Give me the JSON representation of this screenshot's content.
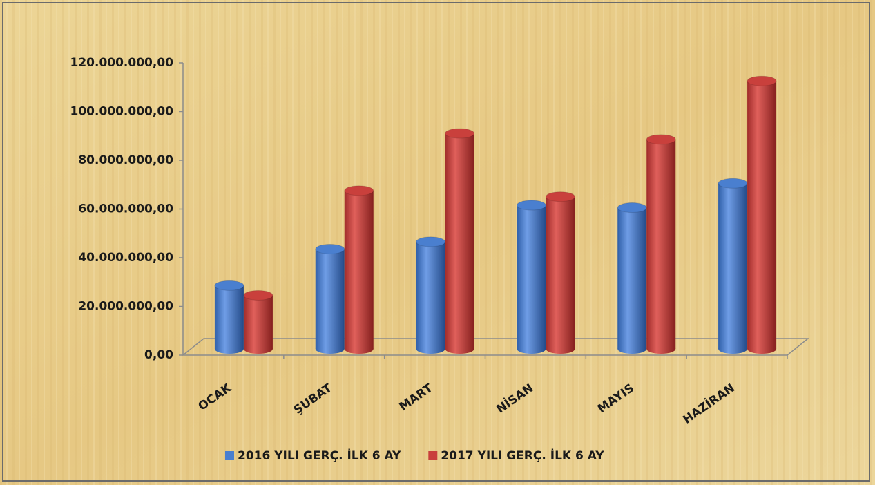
{
  "chart_data": {
    "type": "bar3d",
    "categories": [
      "OCAK",
      "ŞUBAT",
      "MART",
      "NİSAN",
      "MAYIS",
      "HAZİRAN"
    ],
    "series": [
      {
        "name": "2016 YILI GERÇ. İLK 6 AY",
        "color": "#4a7fcf",
        "values": [
          26000000,
          41000000,
          44000000,
          59000000,
          58000000,
          68000000
        ]
      },
      {
        "name": "2017 YILI GERÇ. İLK 6 AY",
        "color": "#c9403c",
        "values": [
          22000000,
          65000000,
          88500000,
          62500000,
          86000000,
          110000000
        ]
      }
    ],
    "ylim": [
      0,
      120000000
    ],
    "yticks": [
      {
        "value": 0,
        "label": "0,00"
      },
      {
        "value": 20000000,
        "label": "20.000.000,00"
      },
      {
        "value": 40000000,
        "label": "40.000.000,00"
      },
      {
        "value": 60000000,
        "label": "60.000.000,00"
      },
      {
        "value": 80000000,
        "label": "80.000.000,00"
      },
      {
        "value": 100000000,
        "label": "100.000.000,00"
      },
      {
        "value": 120000000,
        "label": "120.000.000,00"
      }
    ],
    "legend": "bottom"
  }
}
